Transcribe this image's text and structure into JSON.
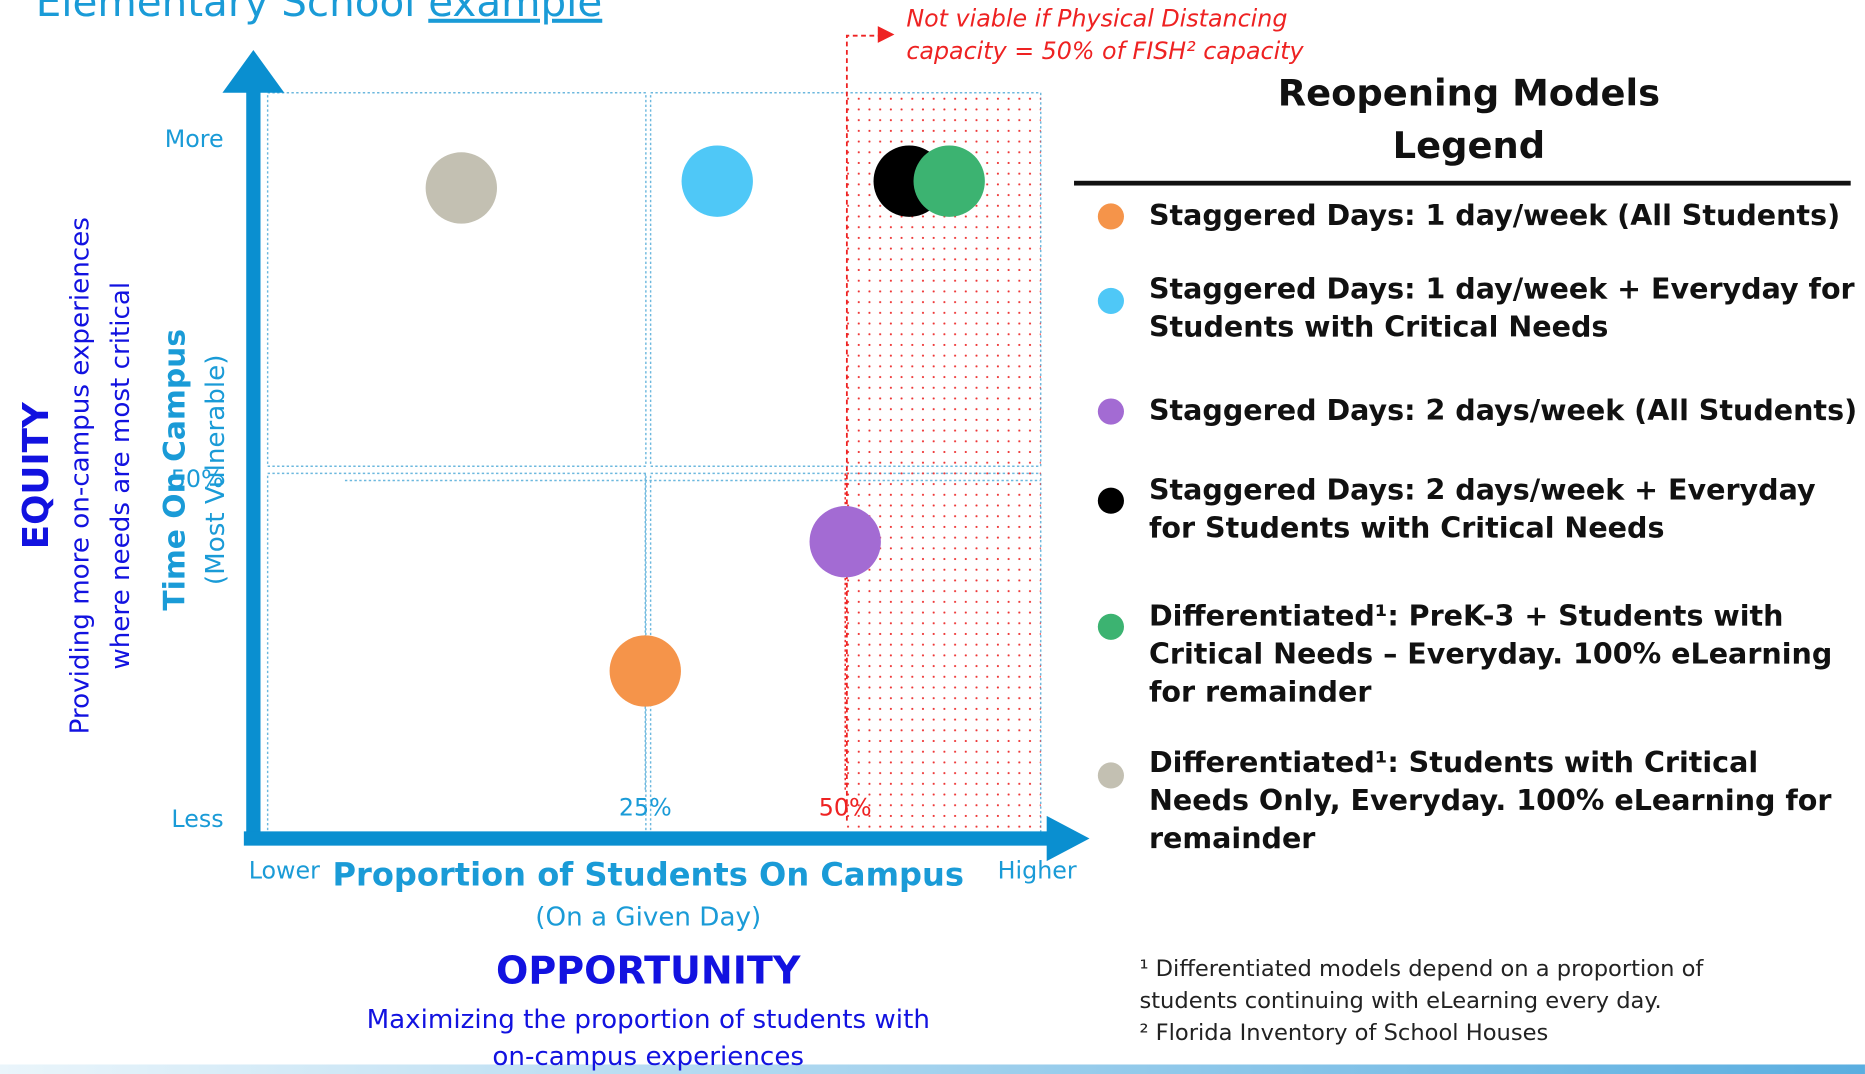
{
  "chart_data": {
    "type": "scatter",
    "title": "Elementary School ",
    "title_link": "example",
    "annotation": [
      "Not viable if Physical Distancing",
      "capacity = 50% of FISH² capacity"
    ],
    "y_title": "Time On Campus",
    "y_subtitle": "(Most Vulnerable)",
    "y_theme": "EQUITY",
    "y_theme_text": [
      "Providing more on-campus experiences",
      "where needs are most critical"
    ],
    "x_title": "Proportion of Students On Campus",
    "x_subtitle": "(On a Given Day)",
    "x_theme": "OPPORTUNITY",
    "x_theme_text": [
      "Maximizing the proportion of students with",
      "on-campus experiences"
    ],
    "legend_title": [
      "Reopening Models",
      "Legend"
    ],
    "xlim": [
      -24,
      74
    ],
    "ylim": [
      0,
      100
    ],
    "xticks": [
      {
        "value": -24,
        "label": "Lower"
      },
      {
        "value": 25,
        "label": "25%"
      },
      {
        "value": 50,
        "label": "50%"
      },
      {
        "value": 74,
        "label": "Higher"
      }
    ],
    "yticks": [
      {
        "value": 0,
        "label": "Less"
      },
      {
        "value": 50,
        "label": "50%"
      },
      {
        "value": 100,
        "label": "More"
      }
    ],
    "series": [
      {
        "name": "Staggered Days: 1 day/week (All Students)",
        "color": "#f5944a",
        "x": [
          25
        ],
        "values": [
          22
        ]
      },
      {
        "name": "Staggered Days: 1 day/week + Everyday for Students with Critical Needs",
        "color": "#4fc8f7",
        "x": [
          34
        ],
        "values": [
          94
        ]
      },
      {
        "name": "Staggered Days: 2 days/week (All Students)",
        "color": "#a36bd3",
        "x": [
          50
        ],
        "values": [
          41
        ]
      },
      {
        "name": "Staggered Days: 2 days/week + Everyday for Students with Critical Needs",
        "color": "#000000",
        "x": [
          58
        ],
        "values": [
          94
        ]
      },
      {
        "name": "Differentiated¹: PreK-3 + Students with Critical Needs – Everyday. 100% eLearning for remainder",
        "color": "#3cb371",
        "x": [
          63
        ],
        "values": [
          94
        ]
      },
      {
        "name": "Differentiated¹: Students with Critical Needs Only, Everyday. 100% eLearning for remainder",
        "color": "#c3c0b2",
        "x": [
          2
        ],
        "values": [
          93
        ]
      }
    ],
    "footnotes": [
      "¹ Differentiated models depend on a proportion of",
      "students continuing with eLearning every day.",
      "² Florida Inventory of School Houses"
    ]
  }
}
